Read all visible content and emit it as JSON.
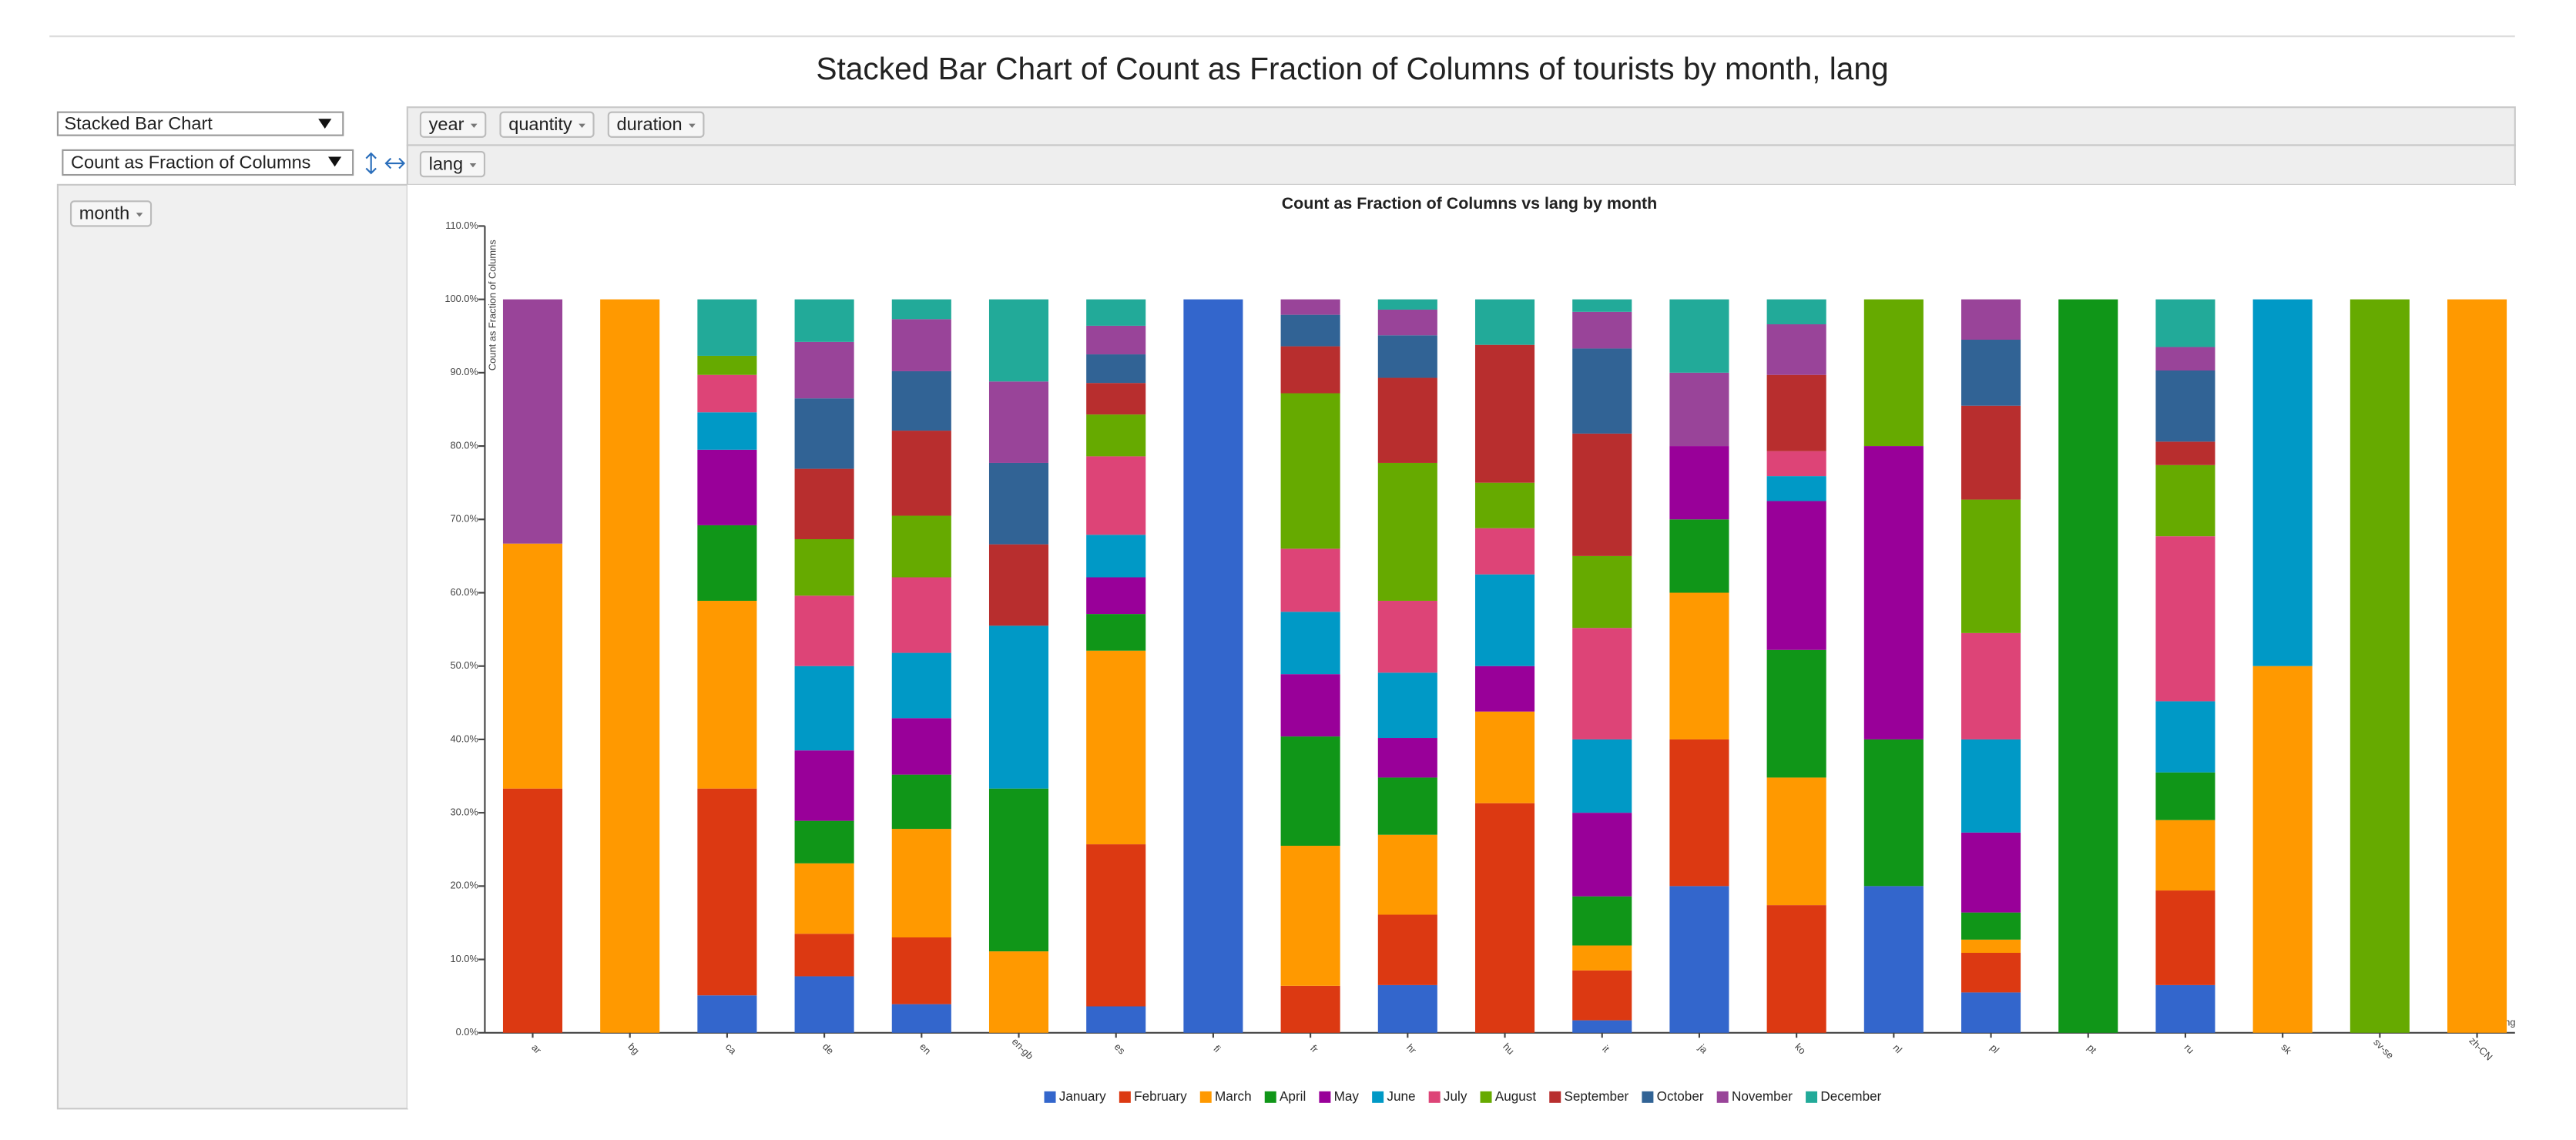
{
  "ui": {
    "title": "Stacked Bar Chart of Count as Fraction of Columns of tourists by month, lang",
    "renderer": "Stacked Bar Chart",
    "aggregator": "Count as Fraction of Columns",
    "unused_fields": [
      "year",
      "quantity",
      "duration"
    ],
    "column_fields": [
      "lang"
    ],
    "row_fields": [
      "month"
    ]
  },
  "chart_data": {
    "type": "bar",
    "stacked": true,
    "title": "Count as Fraction of Columns vs lang by month",
    "y_label": "Count as Fraction of Columns",
    "x_label": "lang",
    "categories": [
      "ar",
      "bg",
      "ca",
      "de",
      "en",
      "en-gb",
      "es",
      "fi",
      "fr",
      "hr",
      "hu",
      "it",
      "ja",
      "ko",
      "nl",
      "pl",
      "pt",
      "ru",
      "sk",
      "sv-se",
      "zh-CN"
    ],
    "series": [
      {
        "name": "January",
        "color": "#3366cc",
        "values": [
          0,
          0,
          5.1,
          7.7,
          3.9,
          0,
          3.6,
          100,
          0,
          6.5,
          0,
          1.7,
          20,
          0,
          20,
          5.5,
          0,
          6.5,
          0,
          0,
          0
        ]
      },
      {
        "name": "February",
        "color": "#dc3912",
        "values": [
          33.3,
          0,
          28.2,
          5.8,
          9.1,
          0,
          22.1,
          0,
          6.4,
          9.6,
          31.3,
          6.8,
          20,
          17.4,
          0,
          5.4,
          0,
          12.9,
          0,
          0,
          0
        ]
      },
      {
        "name": "March",
        "color": "#ff9900",
        "values": [
          33.4,
          100,
          25.6,
          9.6,
          14.8,
          11.1,
          26.4,
          0,
          19.1,
          10.9,
          12.5,
          3.4,
          20,
          17.4,
          0,
          1.8,
          0,
          9.6,
          50,
          0,
          100
        ]
      },
      {
        "name": "April",
        "color": "#109618",
        "values": [
          0,
          0,
          10.3,
          5.8,
          7.4,
          22.2,
          5.0,
          0,
          14.9,
          7.8,
          0,
          6.7,
          10,
          17.4,
          20,
          3.7,
          100,
          6.5,
          0,
          0,
          0
        ]
      },
      {
        "name": "May",
        "color": "#990099",
        "values": [
          0,
          0,
          10.3,
          9.6,
          7.7,
          0,
          5.0,
          0,
          8.5,
          5.4,
          6.2,
          11.4,
          10,
          20.3,
          40,
          10.9,
          0,
          0,
          0,
          0,
          0
        ]
      },
      {
        "name": "June",
        "color": "#0099c6",
        "values": [
          0,
          0,
          5.1,
          11.5,
          8.9,
          22.2,
          5.8,
          0,
          8.5,
          8.9,
          12.5,
          10,
          0,
          3.4,
          0,
          12.7,
          0,
          9.7,
          50,
          0,
          0
        ]
      },
      {
        "name": "July",
        "color": "#dd4477",
        "values": [
          0,
          0,
          5.1,
          9.6,
          10.3,
          0,
          10.7,
          0,
          8.6,
          9.8,
          6.3,
          15.2,
          0,
          3.4,
          0,
          14.5,
          0,
          22.5,
          0,
          0,
          0
        ]
      },
      {
        "name": "August",
        "color": "#66aa00",
        "values": [
          0,
          0,
          2.6,
          7.7,
          8.4,
          0,
          5.7,
          0,
          21.2,
          18.8,
          6.2,
          9.8,
          0,
          0,
          20,
          18.2,
          0,
          9.7,
          0,
          100,
          0
        ]
      },
      {
        "name": "September",
        "color": "#b82e2e",
        "values": [
          0,
          0,
          0,
          9.6,
          11.6,
          11.1,
          4.3,
          0,
          6.4,
          11.6,
          18.8,
          16.7,
          0,
          10.4,
          0,
          12.8,
          0,
          3.2,
          0,
          0,
          0
        ]
      },
      {
        "name": "October",
        "color": "#316395",
        "values": [
          0,
          0,
          0,
          9.6,
          8.1,
          11.1,
          3.9,
          0,
          4.3,
          5.8,
          0,
          11.6,
          0,
          0,
          0,
          9.0,
          0,
          9.7,
          0,
          0,
          0
        ]
      },
      {
        "name": "November",
        "color": "#994499",
        "values": [
          33.3,
          0,
          0,
          7.7,
          7.1,
          11.1,
          3.9,
          0,
          2.1,
          3.5,
          0,
          5.0,
          10,
          6.9,
          0,
          5.5,
          0,
          3.2,
          0,
          0,
          0
        ]
      },
      {
        "name": "December",
        "color": "#22aa99",
        "values": [
          0,
          0,
          7.7,
          5.8,
          2.7,
          11.2,
          3.6,
          0,
          0,
          1.4,
          6.2,
          1.7,
          10,
          3.4,
          0,
          0,
          0,
          6.5,
          0,
          0,
          0
        ]
      }
    ],
    "ylim": [
      0,
      110
    ],
    "yticks": [
      {
        "value": 0,
        "label": "0.0%"
      },
      {
        "value": 10,
        "label": "10.0%"
      },
      {
        "value": 20,
        "label": "20.0%"
      },
      {
        "value": 30,
        "label": "30.0%"
      },
      {
        "value": 40,
        "label": "40.0%"
      },
      {
        "value": 50,
        "label": "50.0%"
      },
      {
        "value": 60,
        "label": "60.0%"
      },
      {
        "value": 70,
        "label": "70.0%"
      },
      {
        "value": 80,
        "label": "80.0%"
      },
      {
        "value": 90,
        "label": "90.0%"
      },
      {
        "value": 100,
        "label": "100.0%"
      },
      {
        "value": 110,
        "label": "110.0%"
      }
    ],
    "grid": false,
    "legend": "bottom"
  }
}
